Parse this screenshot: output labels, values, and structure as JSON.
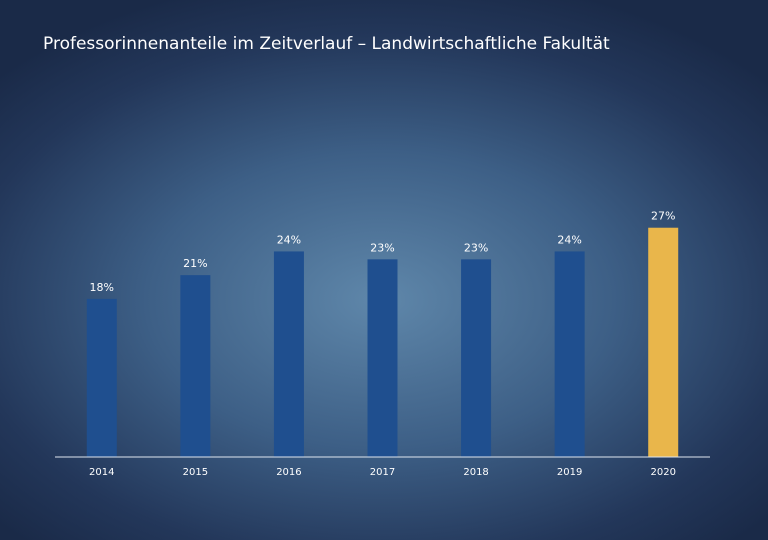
{
  "chart_data": {
    "type": "bar",
    "title": "Professorinnenanteile im Zeitverlauf – Landwirtschaftliche Fakultät",
    "categories": [
      "2014",
      "2015",
      "2016",
      "2017",
      "2018",
      "2019",
      "2020"
    ],
    "values": [
      18,
      21,
      24,
      23,
      23,
      24,
      27
    ],
    "value_labels": [
      "18%",
      "21%",
      "24%",
      "23%",
      "23%",
      "24%",
      "27%"
    ],
    "colors": [
      "#1f4f8f",
      "#1f4f8f",
      "#1f4f8f",
      "#1f4f8f",
      "#1f4f8f",
      "#1f4f8f",
      "#e9b64b"
    ],
    "ylim": [
      -2,
      30
    ]
  }
}
